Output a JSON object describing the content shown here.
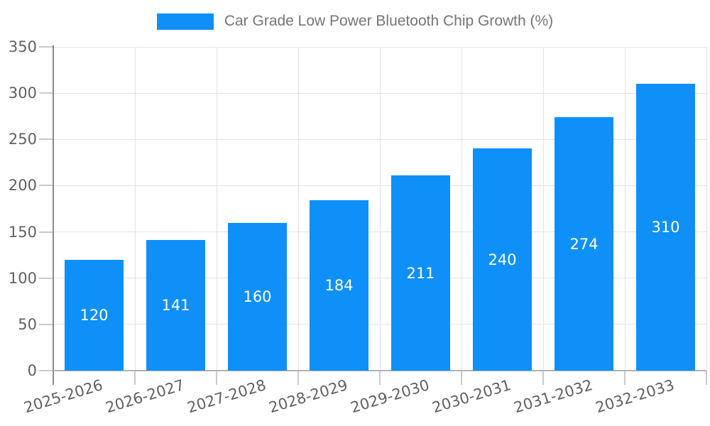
{
  "chart_data": {
    "type": "bar",
    "title": "Car Grade Low Power Bluetooth Chip Growth (%)",
    "categories": [
      "2025-2026",
      "2026-2027",
      "2027-2028",
      "2028-2029",
      "2029-2030",
      "2030-2031",
      "2031-2032",
      "2032-2033"
    ],
    "values": [
      120,
      141,
      160,
      184,
      211,
      240,
      274,
      310
    ],
    "xlabel": "",
    "ylabel": "",
    "ylim": [
      0,
      350
    ],
    "ytick_step": 50,
    "yticks": [
      0,
      50,
      100,
      150,
      200,
      250,
      300,
      350
    ],
    "grid": true,
    "legend_position": "top-center",
    "legend_entries": [
      "Car Grade Low Power Bluetooth Chip Growth (%)"
    ],
    "colors": {
      "bar": "#0e90f8",
      "value_label": "#ffffff",
      "tick_label": "#616161",
      "legend_text": "#757575",
      "gridline": "#e3e3e3",
      "y_axis_line": "#8a8a8a",
      "x_axis_line": "#b3b3b3",
      "tick_mark": "#c9c9c9",
      "background": "#ffffff"
    }
  }
}
